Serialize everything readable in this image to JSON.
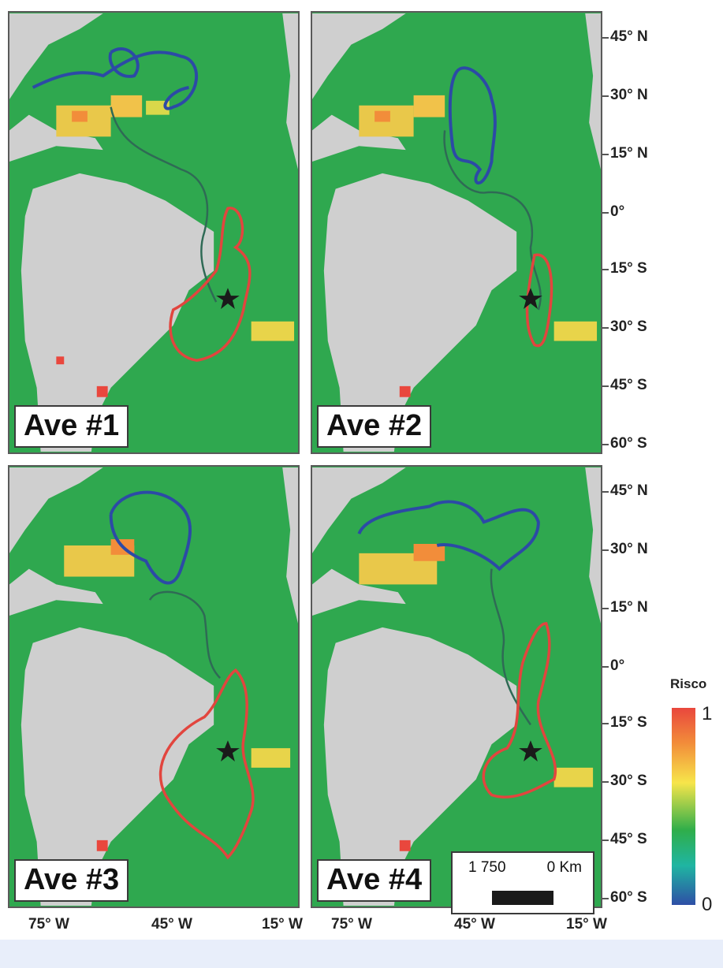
{
  "panels": [
    {
      "label": "Ave #1"
    },
    {
      "label": "Ave #2"
    },
    {
      "label": "Ave #3"
    },
    {
      "label": "Ave #4"
    }
  ],
  "lat_ticks": [
    "45° N",
    "30° N",
    "15° N",
    "0°",
    "15° S",
    "30° S",
    "45° S",
    "60° S"
  ],
  "lon_ticks": [
    "75° W",
    "45° W",
    "15° W"
  ],
  "scale_bar": {
    "left_label": "1 750",
    "right_label": "0 Km"
  },
  "legend": {
    "title": "Risco",
    "max": "1",
    "min": "0"
  },
  "colors": {
    "ocean": "#2fa84f",
    "land": "#cfcfcf",
    "hotspot_high": "#e9473d",
    "hotspot_mid": "#f7e54a",
    "track_north": "#2c4aa6",
    "track_south": "#e2453e",
    "track_transit": "#2f6a55"
  },
  "markers": {
    "tag_site": "star-icon"
  }
}
